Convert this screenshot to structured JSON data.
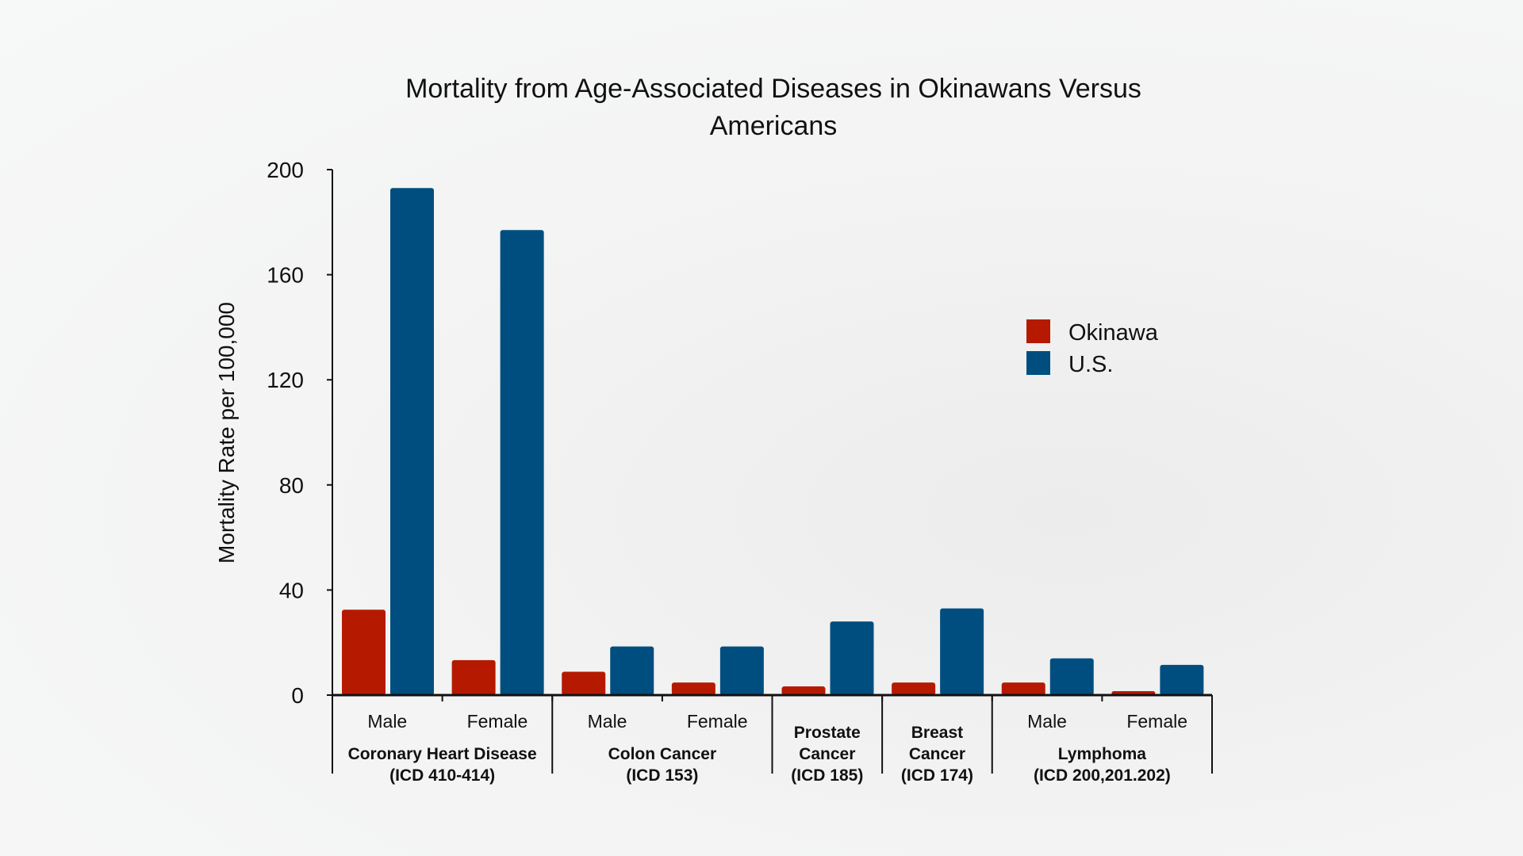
{
  "chart_data": {
    "type": "bar",
    "title": [
      "Mortality from Age-Associated Diseases in Okinawans Versus",
      "Americans"
    ],
    "ylabel": "Mortality Rate per 100,000",
    "xlabel": "",
    "ylim": [
      0,
      200
    ],
    "yticks": [
      0,
      40,
      80,
      120,
      160,
      200
    ],
    "grid": false,
    "legend_position": "right",
    "categories": [
      "Male",
      "Female",
      "Male",
      "Female",
      "",
      "",
      "Male",
      "Female"
    ],
    "groups": [
      {
        "label": [
          "Coronary Heart Disease",
          "(ICD 410-414)"
        ],
        "span": 2
      },
      {
        "label": [
          "Colon Cancer",
          "(ICD 153)"
        ],
        "span": 2
      },
      {
        "label": [
          "Prostate",
          "Cancer",
          "(ICD 185)"
        ],
        "span": 1
      },
      {
        "label": [
          "Breast",
          "Cancer",
          "(ICD 174)"
        ],
        "span": 1
      },
      {
        "label": [
          "Lymphoma",
          "(ICD 200,201.202)"
        ],
        "span": 2
      }
    ],
    "series": [
      {
        "name": "Okinawa",
        "color": "#B51A00",
        "values": [
          32.5,
          13.3,
          8.9,
          4.8,
          3.3,
          4.8,
          4.8,
          1.5
        ]
      },
      {
        "name": "U.S.",
        "color": "#004E7F",
        "values": [
          193,
          177,
          18.5,
          18.5,
          28,
          33,
          14,
          11.5
        ]
      }
    ]
  }
}
